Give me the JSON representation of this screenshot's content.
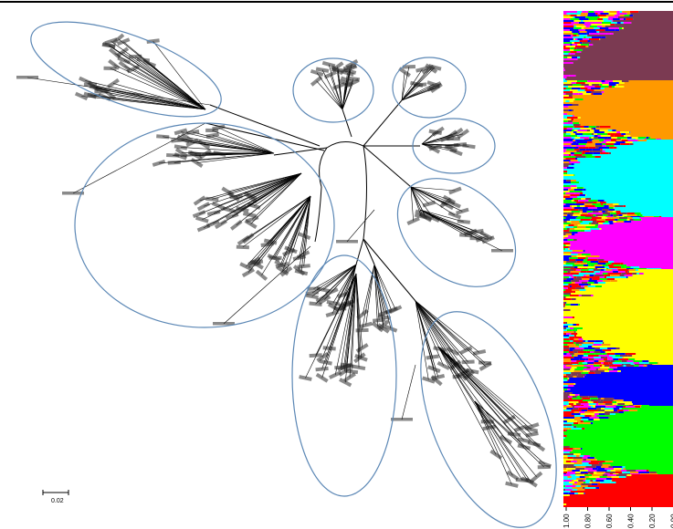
{
  "scale_bar": {
    "label": "0.02"
  },
  "structure_plot": {
    "axis_ticks": [
      "1.00",
      "0.80",
      "0.60",
      "0.40",
      "0.20",
      "0.00"
    ],
    "clusters": [
      {
        "color": "#7b3a52"
      },
      {
        "color": "#ff9900"
      },
      {
        "color": "#00ffff"
      },
      {
        "color": "#ff00ff"
      },
      {
        "color": "#ffff00"
      },
      {
        "color": "#0000ff"
      },
      {
        "color": "#00ff00"
      },
      {
        "color": "#ff0000"
      }
    ]
  },
  "clade_outline_color": "#5b87b5"
}
